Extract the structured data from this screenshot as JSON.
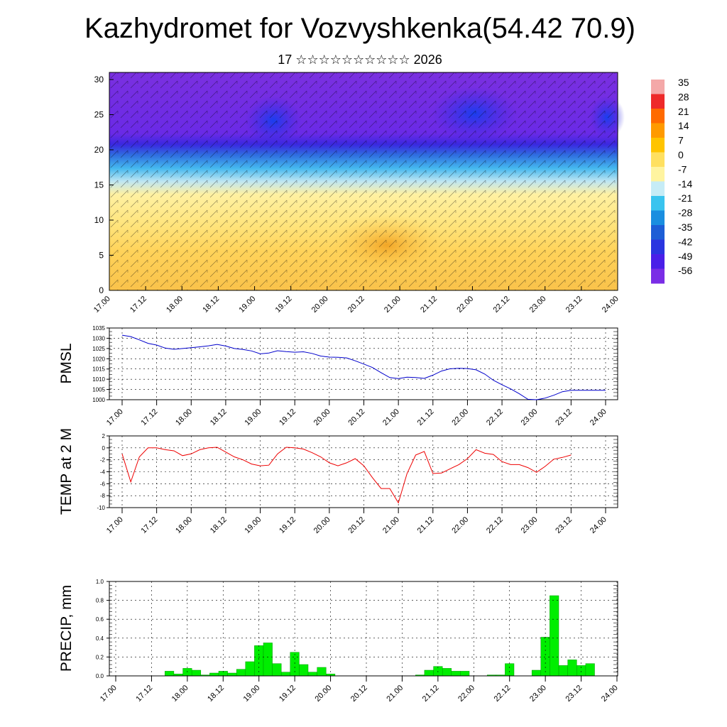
{
  "title": "Kazhydromet for Vozvyshkenka(54.42 70.9)",
  "subtitle": "17 ☆☆☆☆☆☆☆☆☆☆ 2026",
  "colors": {
    "pmsl_line": "#0000cc",
    "temp_line": "#ee0000",
    "precip_bar": "#00ee00",
    "precip_bar_edge": "#009900"
  },
  "time_ticks": [
    "17.00",
    "17.12",
    "18.00",
    "18.12",
    "19.00",
    "19.12",
    "20.00",
    "20.12",
    "21.00",
    "21.12",
    "22.00",
    "22.12",
    "23.00",
    "23.12",
    "24.00"
  ],
  "chart_data": [
    {
      "type": "heatmap",
      "name": "temperature-cross-section",
      "ylim": [
        0,
        30
      ],
      "yticks": [
        "0",
        "5",
        "10",
        "15",
        "20",
        "25",
        "30"
      ],
      "xticks": [
        "17.00",
        "17.12",
        "18.00",
        "18.12",
        "19.00",
        "19.12",
        "20.00",
        "20.12",
        "21.00",
        "21.12",
        "22.00",
        "22.12",
        "23.00",
        "23.12",
        "24.00"
      ],
      "colorbar": {
        "labels": [
          "35",
          "28",
          "21",
          "14",
          "7",
          "0",
          "-7",
          "-14",
          "-21",
          "-28",
          "-35",
          "-42",
          "-49",
          "-56"
        ],
        "colors": [
          "#f4a8a8",
          "#ee2a2a",
          "#ff6a00",
          "#ff9a00",
          "#ffc400",
          "#ffe060",
          "#fff4a0",
          "#c6ecf6",
          "#39c4ef",
          "#1a8ee0",
          "#1d5ed6",
          "#2a35e0",
          "#4a1fe8",
          "#7a2de6"
        ]
      },
      "overlay": "wind barbs"
    },
    {
      "type": "line",
      "name": "pmsl",
      "ylabel": "PMSL",
      "ylim": [
        1000,
        1035
      ],
      "yticks": [
        "1000",
        "1005",
        "1010",
        "1015",
        "1020",
        "1025",
        "1030",
        "1035"
      ],
      "x": [
        0,
        0.125,
        0.25,
        0.375,
        0.5,
        0.625,
        0.75,
        0.875,
        1,
        1.125,
        1.25,
        1.375,
        1.5,
        1.625,
        1.75,
        1.875,
        2,
        2.125,
        2.25,
        2.375,
        2.5,
        2.625,
        2.75,
        2.875,
        3,
        3.125,
        3.25,
        3.375,
        3.5,
        3.625,
        3.75,
        3.875,
        4,
        4.125,
        4.25,
        4.375,
        4.5,
        4.625,
        4.75,
        4.875,
        5,
        5.125,
        5.25,
        5.375,
        5.5,
        5.625,
        5.75,
        5.875,
        6,
        6.125,
        6.25,
        6.375,
        6.5,
        6.625,
        6.75,
        6.875,
        7
      ],
      "values": [
        1031.5,
        1030.8,
        1029.2,
        1027.5,
        1026.7,
        1025.2,
        1024.6,
        1025.0,
        1025.4,
        1025.8,
        1026.3,
        1027.0,
        1026.2,
        1025.0,
        1024.5,
        1023.8,
        1022.4,
        1022.8,
        1023.9,
        1023.5,
        1023.2,
        1023.4,
        1022.6,
        1021.3,
        1020.8,
        1020.7,
        1020.4,
        1019.0,
        1017.4,
        1015.7,
        1013.2,
        1010.8,
        1010.3,
        1011.0,
        1010.8,
        1010.4,
        1012.0,
        1014.0,
        1015.1,
        1015.3,
        1015.2,
        1014.6,
        1012.5,
        1009.5,
        1007.3,
        1005.3,
        1002.9,
        1000.2,
        1000.0,
        1000.8,
        1002.2,
        1003.9,
        1004.6,
        1004.6,
        1004.6,
        1004.6,
        1004.6
      ],
      "xlabel": ""
    },
    {
      "type": "line",
      "name": "temp-2m",
      "ylabel": "TEMP at 2 M",
      "ylim": [
        -10,
        2
      ],
      "yticks": [
        "-10",
        "-8",
        "-6",
        "-4",
        "-2",
        "0",
        "2"
      ],
      "x": [
        0,
        0.125,
        0.25,
        0.375,
        0.5,
        0.625,
        0.75,
        0.875,
        1,
        1.125,
        1.25,
        1.375,
        1.5,
        1.625,
        1.75,
        1.875,
        2,
        2.125,
        2.25,
        2.375,
        2.5,
        2.625,
        2.75,
        2.875,
        3,
        3.125,
        3.25,
        3.375,
        3.5,
        3.625,
        3.75,
        3.875,
        4,
        4.125,
        4.25,
        4.375,
        4.5,
        4.625,
        4.75,
        4.875,
        5,
        5.125,
        5.25,
        5.375,
        5.5,
        5.625,
        5.75,
        5.875,
        6,
        6.125,
        6.25,
        6.375,
        6.5
      ],
      "values": [
        -1.0,
        -5.7,
        -1.5,
        0.0,
        0.0,
        -0.3,
        -0.5,
        -1.3,
        -1.0,
        -0.3,
        0.0,
        0.1,
        -0.7,
        -1.5,
        -2.0,
        -2.7,
        -3.0,
        -2.9,
        -1.0,
        0.1,
        0.0,
        -0.2,
        -0.8,
        -1.5,
        -2.5,
        -3.0,
        -2.5,
        -1.8,
        -3.0,
        -5.0,
        -6.8,
        -6.8,
        -9.2,
        -4.3,
        -1.2,
        -0.6,
        -4.3,
        -4.2,
        -3.5,
        -2.8,
        -1.8,
        -0.3,
        -0.9,
        -1.1,
        -2.3,
        -2.8,
        -2.8,
        -3.3,
        -4.1,
        -3.1,
        -1.9,
        -1.6,
        -1.2
      ],
      "xlabel": ""
    },
    {
      "type": "bar",
      "name": "precip",
      "ylabel": "PRECIP, mm",
      "ylim": [
        0,
        1.0
      ],
      "yticks": [
        "0.0",
        "0.2",
        "0.4",
        "0.6",
        "0.8",
        "1.0"
      ],
      "x": [
        0.75,
        0.875,
        1,
        1.125,
        1.25,
        1.375,
        1.5,
        1.625,
        1.75,
        1.875,
        2,
        2.125,
        2.25,
        2.375,
        2.5,
        2.625,
        2.75,
        2.875,
        3,
        3.125,
        3.25,
        3.375,
        3.5,
        3.625,
        3.75,
        3.875,
        4,
        4.125,
        4.25,
        4.375,
        4.5,
        4.625,
        4.75,
        4.875,
        5,
        5.125,
        5.25,
        5.375,
        5.5,
        5.625,
        5.75,
        5.875,
        6,
        6.125,
        6.25,
        6.375,
        6.5,
        6.625,
        6.75,
        6.875
      ],
      "values": [
        0.05,
        0.02,
        0.08,
        0.06,
        0.01,
        0.03,
        0.05,
        0.03,
        0.07,
        0.15,
        0.32,
        0.35,
        0.13,
        0.04,
        0.25,
        0.12,
        0.04,
        0.09,
        0.02,
        0,
        0,
        0,
        0,
        0,
        0,
        0,
        0,
        0,
        0.01,
        0.06,
        0.1,
        0.08,
        0.05,
        0.05,
        0,
        0,
        0.01,
        0.01,
        0.13,
        0,
        0,
        0.06,
        0.41,
        0.85,
        0.11,
        0.17,
        0.11,
        0.13,
        0,
        0
      ],
      "xlabel": ""
    }
  ]
}
